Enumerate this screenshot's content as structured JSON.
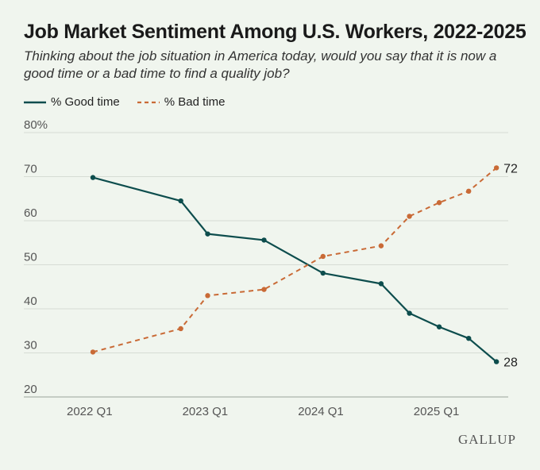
{
  "colors": {
    "background": "#f0f5ee",
    "good": "#0d4d4d",
    "bad": "#c96a36",
    "grid": "#d6dcd4",
    "axis": "#555555"
  },
  "chart_data": {
    "type": "line",
    "title": "Job Market Sentiment Among U.S. Workers, 2022-2025",
    "subtitle": "Thinking about the job situation in America today, would you say that it is now a good time or a bad time to find a quality job?",
    "legend_placement": "top-left",
    "grid": true,
    "ylim": [
      20,
      80
    ],
    "yticks": [
      "80%",
      "70",
      "60",
      "50",
      "40",
      "30",
      "20"
    ],
    "xticks": [
      "2022 Q1",
      "2023 Q1",
      "2024 Q1",
      "2025 Q1"
    ],
    "series": [
      {
        "name": "% Good time",
        "style": "solid",
        "color": "#0d4d4d",
        "end_label": "28",
        "points": [
          [
            0,
            69.8
          ],
          [
            3.04,
            64.5
          ],
          [
            3.97,
            57
          ],
          [
            5.92,
            55.6
          ],
          [
            7.96,
            48.1
          ],
          [
            9.97,
            45.7
          ],
          [
            10.95,
            39
          ],
          [
            11.98,
            35.9
          ],
          [
            13.0,
            33.3
          ],
          [
            13.96,
            28
          ]
        ]
      },
      {
        "name": "% Bad time",
        "style": "dashed",
        "color": "#c96a36",
        "end_label": "72",
        "points": [
          [
            0,
            30.2
          ],
          [
            3.04,
            35.5
          ],
          [
            3.97,
            43
          ],
          [
            5.92,
            44.4
          ],
          [
            7.96,
            51.9
          ],
          [
            9.97,
            54.3
          ],
          [
            10.95,
            61
          ],
          [
            11.98,
            64.1
          ],
          [
            13.0,
            66.7
          ],
          [
            13.96,
            72
          ]
        ]
      }
    ]
  },
  "brand": {
    "logo_text": "GALLUP"
  }
}
